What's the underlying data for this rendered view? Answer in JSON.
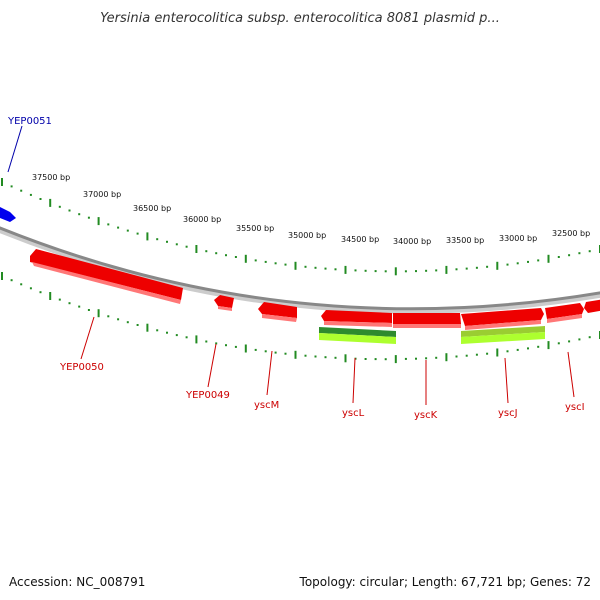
{
  "title": "Yersinia enterocolitica subsp. enterocolitica 8081 plasmid p...",
  "footer": {
    "accession": "Accession: NC_008791",
    "summary": "Topology: circular; Length: 67,721 bp; Genes: 72"
  },
  "colors": {
    "gene_forward": "#ee0000",
    "gene_forward_highlight": "#ff6666",
    "gene_selected": "#0000ee",
    "feature_dark": "#2e8b2e",
    "feature_light": "#adff2f",
    "backbone": "#888888",
    "tick": "#228b22",
    "label_red": "#cc0000",
    "label_blue": "#0000aa"
  },
  "ruler": {
    "labels": [
      "37500 bp",
      "37000 bp",
      "36500 bp",
      "36000 bp",
      "35500 bp",
      "35000 bp",
      "34500 bp",
      "34000 bp",
      "33500 bp",
      "33000 bp",
      "32500 bp"
    ]
  },
  "genes": [
    {
      "name": "YEP0051",
      "color": "blue"
    },
    {
      "name": "YEP0050",
      "color": "red"
    },
    {
      "name": "YEP0049",
      "color": "red"
    },
    {
      "name": "yscM",
      "color": "red"
    },
    {
      "name": "yscL",
      "color": "red"
    },
    {
      "name": "yscK",
      "color": "red"
    },
    {
      "name": "yscJ",
      "color": "red"
    },
    {
      "name": "yscI",
      "color": "red"
    }
  ]
}
